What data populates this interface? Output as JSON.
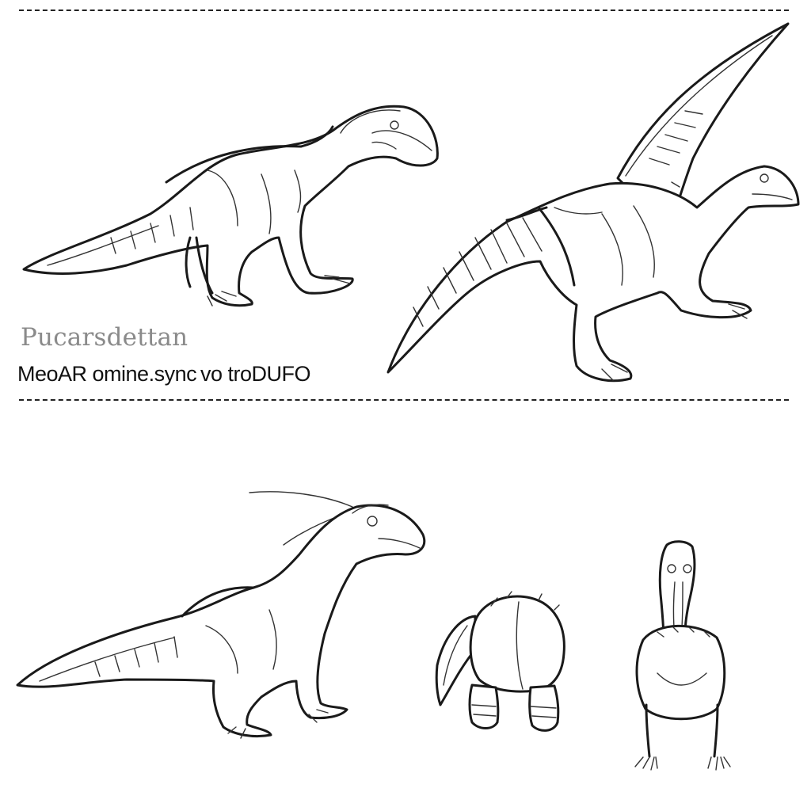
{
  "sheet": {
    "caption_title": "Pucarsdettan",
    "caption_subtitle": "MeoAR omine.sync vo troDUFO"
  },
  "figures": [
    {
      "name": "side-view-quadruped",
      "pose": "walking, side view"
    },
    {
      "name": "winged-side-view",
      "pose": "crouching with raised wing"
    },
    {
      "name": "side-view-crested",
      "pose": "standing, side view"
    },
    {
      "name": "rear-view",
      "pose": "rear view"
    },
    {
      "name": "front-view",
      "pose": "front view"
    }
  ]
}
